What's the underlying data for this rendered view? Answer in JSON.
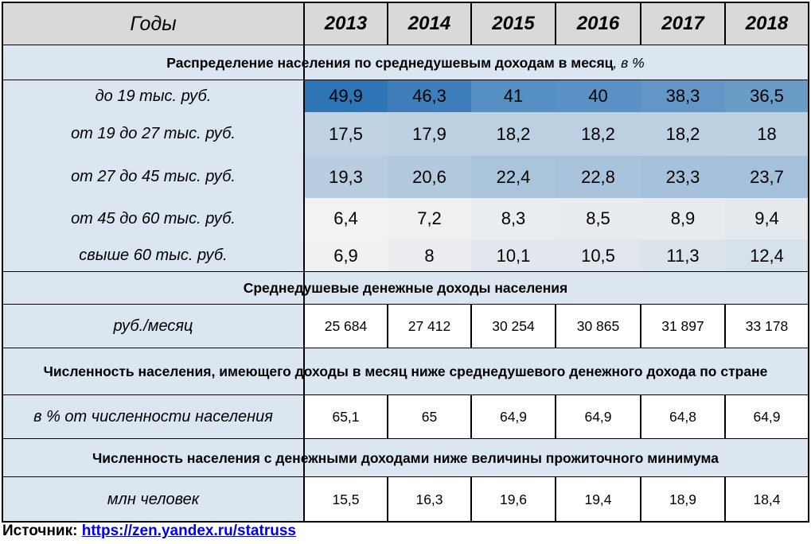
{
  "header": {
    "label": "Годы",
    "years": [
      "2013",
      "2014",
      "2015",
      "2016",
      "2017",
      "2018"
    ]
  },
  "sections": [
    {
      "title": "Распределение населения по среднедушевым доходам в месяц",
      "unit": ", в %",
      "heatmap": true,
      "rows": [
        {
          "label": "до 19 тыс. руб.",
          "values": [
            "49,9",
            "46,3",
            "41",
            "40",
            "38,3",
            "36,5"
          ]
        },
        {
          "label": "от 19 до 27 тыс. руб.",
          "values": [
            "17,5",
            "17,9",
            "18,2",
            "18,2",
            "18,2",
            "18"
          ]
        },
        {
          "label": "от 27 до 45 тыс. руб.",
          "values": [
            "19,3",
            "20,6",
            "22,4",
            "22,8",
            "23,3",
            "23,7"
          ]
        },
        {
          "label": "от 45 до 60 тыс. руб.",
          "values": [
            "6,4",
            "7,2",
            "8,3",
            "8,5",
            "8,9",
            "9,4"
          ]
        },
        {
          "label": "свыше 60 тыс. руб.",
          "values": [
            "6,9",
            "8",
            "10,1",
            "10,5",
            "11,3",
            "12,4"
          ]
        }
      ]
    },
    {
      "title": "Среднедушевые денежные доходы населения",
      "rows": [
        {
          "label": "руб./месяц",
          "values": [
            "25 684",
            "27 412",
            "30 254",
            "30 865",
            "31 897",
            "33 178"
          ]
        }
      ]
    },
    {
      "title": "Численность населения, имеющего доходы в месяц ниже среднедушевого денежного дохода по стране",
      "rows": [
        {
          "label": "в % от численности населения",
          "values": [
            "65,1",
            "65",
            "64,9",
            "64,9",
            "64,8",
            "64,9"
          ]
        }
      ]
    },
    {
      "title": "Численность населения с денежными доходами ниже величины прожиточного минимума",
      "rows": [
        {
          "label": "млн человек",
          "values": [
            "15,5",
            "16,3",
            "19,6",
            "19,4",
            "18,9",
            "18,4"
          ]
        }
      ]
    }
  ],
  "source": {
    "label": "Источник:",
    "link": "https://zen.yandex.ru/statruss"
  }
}
